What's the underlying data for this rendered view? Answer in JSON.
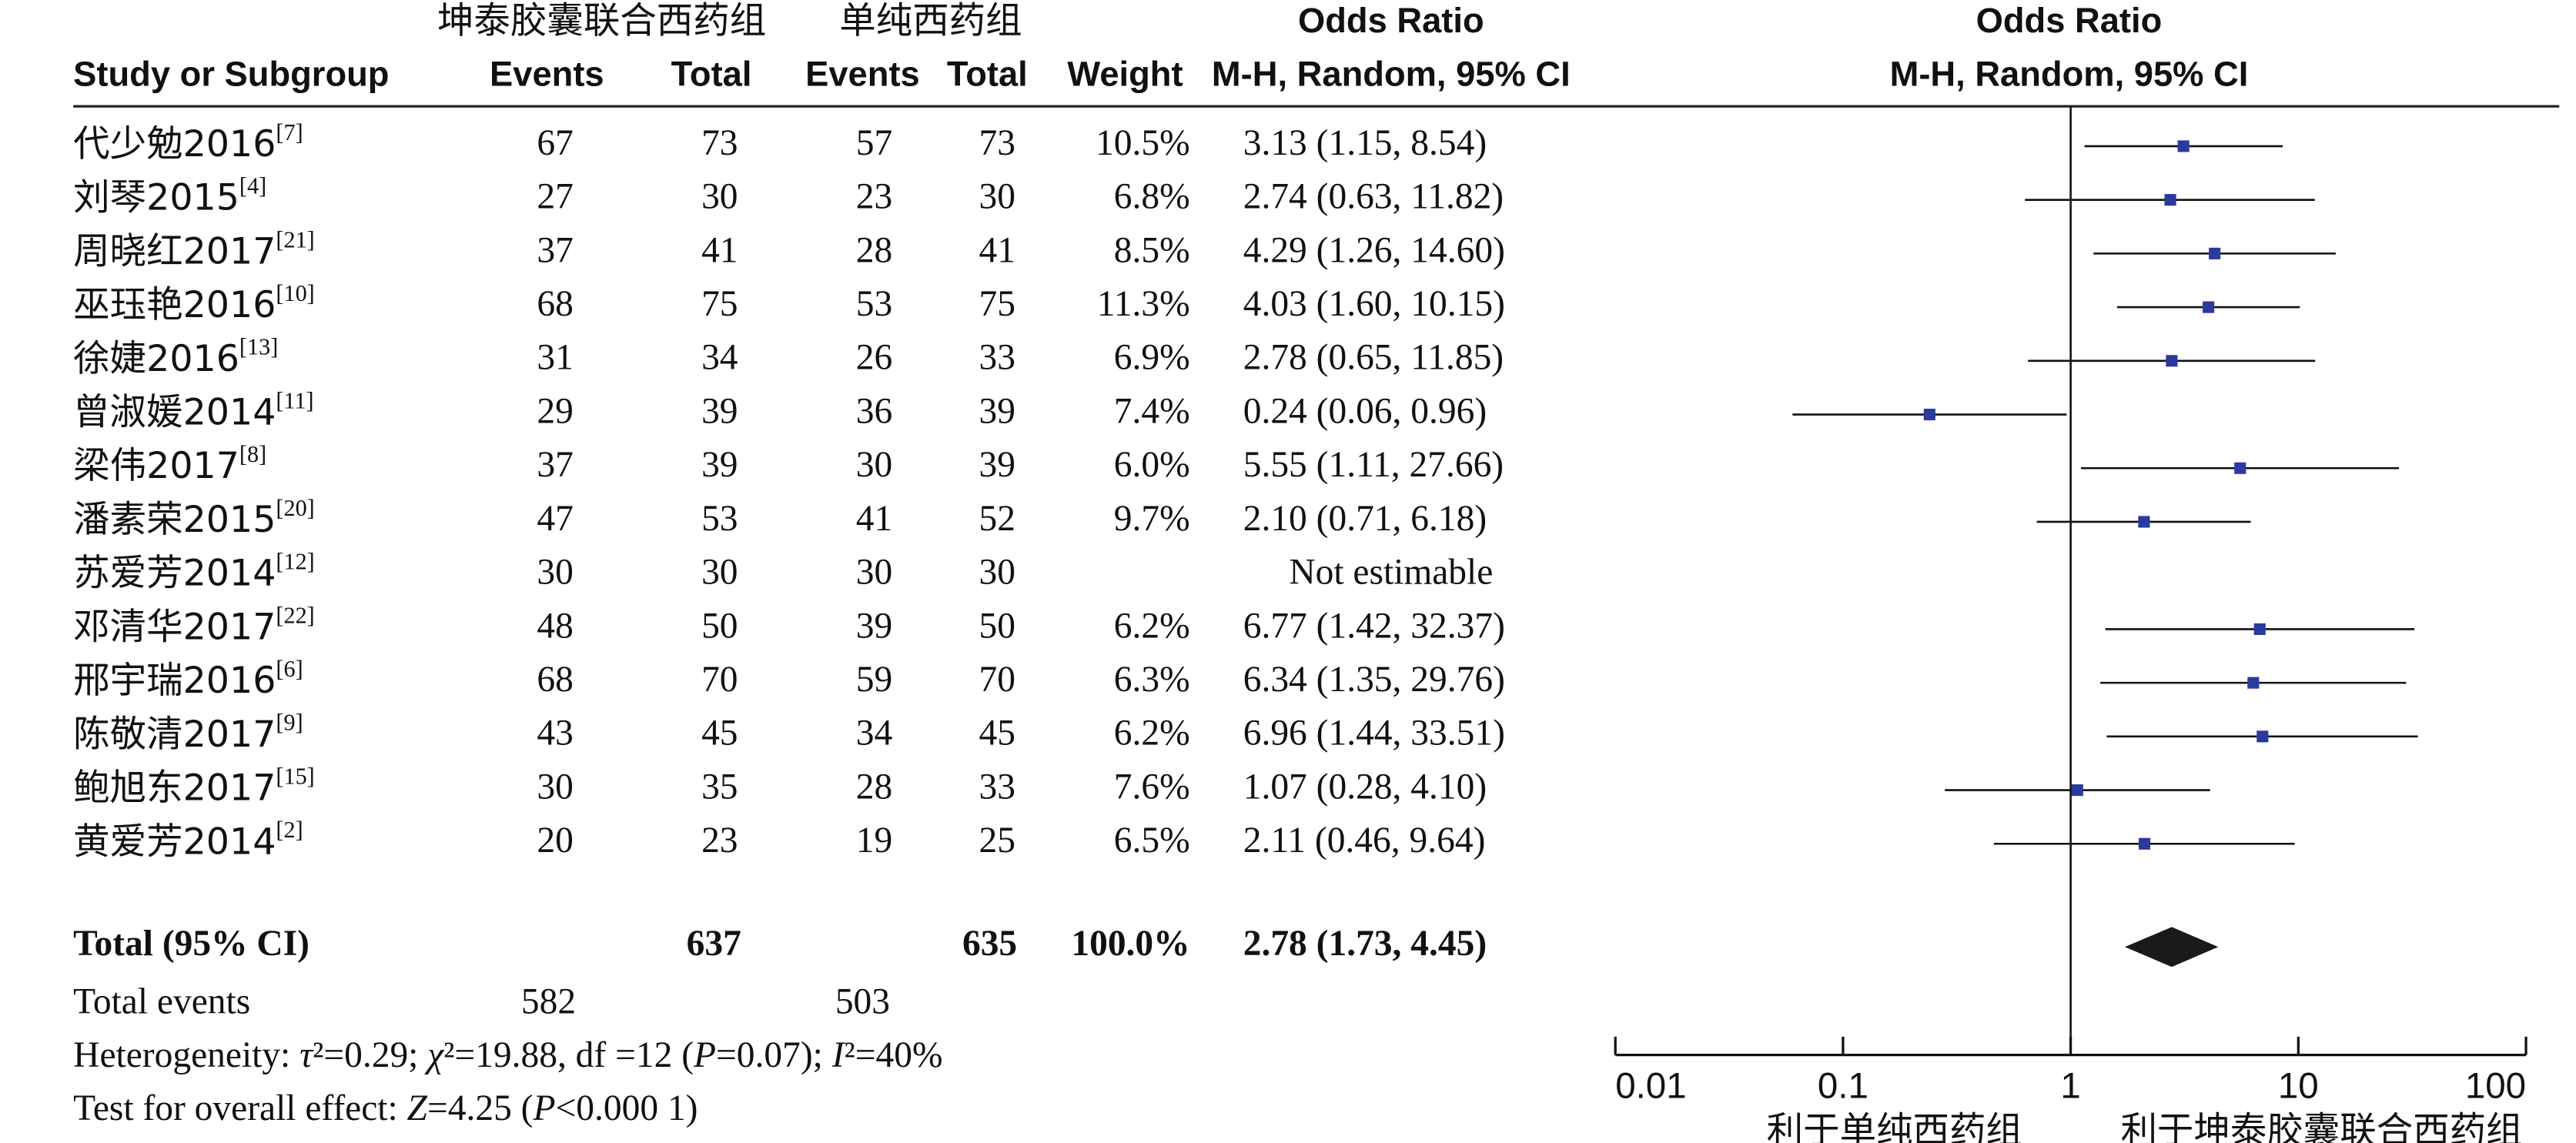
{
  "table": {
    "group_headers": [
      "坤泰胶囊联合西药组",
      "单纯西药组",
      "Odds Ratio"
    ],
    "headers": [
      "Study or Subgroup",
      "Events",
      "Total",
      "Events",
      "Total",
      "Weight",
      "M-H, Random, 95% CI"
    ],
    "rows": [
      [
        "代少勉2016",
        "[7]",
        67,
        73,
        57,
        73,
        "10.5%",
        "3.13 (1.15, 8.54)"
      ],
      [
        "刘琴2015",
        "[4]",
        27,
        30,
        23,
        30,
        "6.8%",
        "2.74 (0.63, 11.82)"
      ],
      [
        "周晓红2017",
        "[21]",
        37,
        41,
        28,
        41,
        "8.5%",
        "4.29 (1.26, 14.60)"
      ],
      [
        "巫珏艳2016",
        "[10]",
        68,
        75,
        53,
        75,
        "11.3%",
        "4.03 (1.60, 10.15)"
      ],
      [
        "徐婕2016",
        "[13]",
        31,
        34,
        26,
        33,
        "6.9%",
        "2.78 (0.65, 11.85)"
      ],
      [
        "曾淑媛2014",
        "[11]",
        29,
        39,
        36,
        39,
        "7.4%",
        "0.24 (0.06, 0.96)"
      ],
      [
        "梁伟2017",
        "[8]",
        37,
        39,
        30,
        39,
        "6.0%",
        "5.55 (1.11, 27.66)"
      ],
      [
        "潘素荣2015",
        "[20]",
        47,
        53,
        41,
        52,
        "9.7%",
        "2.10 (0.71, 6.18)"
      ],
      [
        "苏爱芳2014",
        "[12]",
        30,
        30,
        30,
        30,
        null,
        "Not estimable"
      ],
      [
        "邓清华2017",
        "[22]",
        48,
        50,
        39,
        50,
        "6.2%",
        "6.77 (1.42, 32.37)"
      ],
      [
        "邢宇瑞2016",
        "[6]",
        68,
        70,
        59,
        70,
        "6.3%",
        "6.34 (1.35, 29.76)"
      ],
      [
        "陈敬清2017",
        "[9]",
        43,
        45,
        34,
        45,
        "6.2%",
        "6.96 (1.44, 33.51)"
      ],
      [
        "鲍旭东2017",
        "[15]",
        30,
        35,
        28,
        33,
        "7.6%",
        "1.07 (0.28, 4.10)"
      ],
      [
        "黄爱芳2014",
        "[2]",
        20,
        23,
        19,
        25,
        "6.5%",
        "2.11 (0.46, 9.64)"
      ]
    ],
    "total_row": [
      "Total (95% CI)",
      637,
      635,
      "100.0%",
      "2.78 (1.73, 4.45)"
    ],
    "total_events": [
      "Total events",
      582,
      503
    ],
    "heterogeneity": [
      "Heterogeneity: ",
      "τ",
      "²=0.29; ",
      "χ",
      "²=19.88, df =12 (",
      "P",
      "=0.07); ",
      "I",
      "²=40%"
    ],
    "overall_effect": [
      "Test for overall effect: ",
      "Z",
      "=4.25 (",
      "P",
      "<0.000 1)"
    ]
  },
  "chart_data": {
    "type": "forest",
    "title": "Odds Ratio",
    "subtitle": "M-H, Random, 95% CI",
    "values": [
      3.13,
      2.74,
      4.29,
      4.03,
      2.78,
      0.24,
      5.55,
      2.1,
      null,
      6.77,
      6.34,
      6.96,
      1.07,
      2.11
    ],
    "lower": [
      1.15,
      0.63,
      1.26,
      1.6,
      0.65,
      0.06,
      1.11,
      0.71,
      null,
      1.42,
      1.35,
      1.44,
      0.28,
      0.46
    ],
    "upper": [
      8.54,
      11.82,
      14.6,
      10.15,
      11.85,
      0.96,
      27.66,
      6.18,
      null,
      32.37,
      29.76,
      33.51,
      4.1,
      9.64
    ],
    "total": {
      "value": 2.78,
      "lower": 1.73,
      "upper": 4.45
    },
    "xlim": [
      0.01,
      100
    ],
    "xticks": [
      0.01,
      0.1,
      1,
      10,
      100
    ],
    "log_x": true,
    "reference_line": 1,
    "color": "#2b3a9c",
    "total_color": "#1a1a1a",
    "xlabel_left": "利于单纯西药组",
    "xlabel_right": "利于坤泰胶囊联合西药组"
  }
}
